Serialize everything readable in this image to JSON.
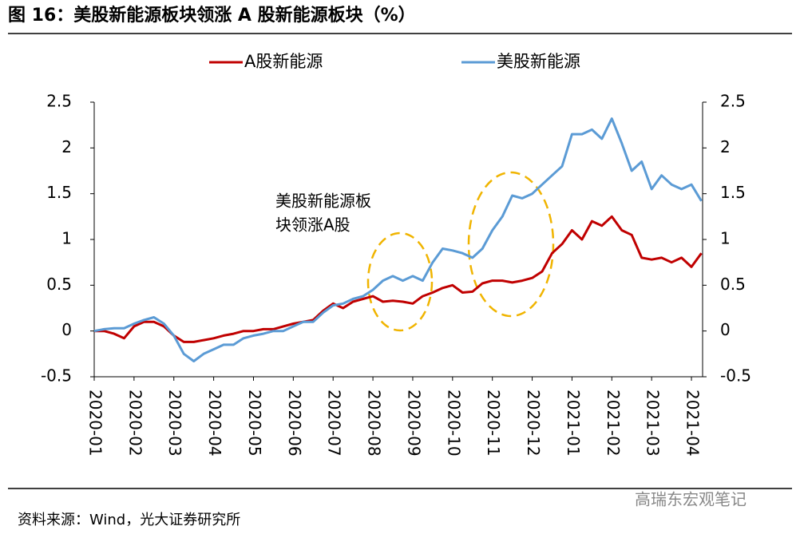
{
  "chart_data": {
    "type": "line",
    "title": "图 16：美股新能源板块领涨 A 股新能源板块（%）",
    "annotation": [
      "美股新能源板",
      "块领涨A股"
    ],
    "source": "资料来源：Wind，光大证券研究所",
    "watermark": "高瑞东宏观笔记",
    "x": [
      0,
      0.25,
      0.5,
      0.75,
      1,
      1.25,
      1.5,
      1.75,
      2,
      2.25,
      2.5,
      2.75,
      3,
      3.25,
      3.5,
      3.75,
      4,
      4.25,
      4.5,
      4.75,
      5,
      5.25,
      5.5,
      5.75,
      6,
      6.25,
      6.5,
      6.75,
      7,
      7.25,
      7.5,
      7.75,
      8,
      8.25,
      8.5,
      8.75,
      9,
      9.25,
      9.5,
      9.75,
      10,
      10.25,
      10.5,
      10.75,
      11,
      11.25,
      11.5,
      11.75,
      12,
      12.25,
      12.5,
      12.75,
      13,
      13.25,
      13.5,
      13.75,
      14,
      14.25,
      14.5,
      14.75,
      15,
      15.25
    ],
    "xlim": [
      0,
      15.28
    ],
    "xticks": [
      {
        "value": 0,
        "label": "2020-01"
      },
      {
        "value": 1,
        "label": "2020-02"
      },
      {
        "value": 2,
        "label": "2020-03"
      },
      {
        "value": 3,
        "label": "2020-04"
      },
      {
        "value": 4,
        "label": "2020-05"
      },
      {
        "value": 5,
        "label": "2020-06"
      },
      {
        "value": 6,
        "label": "2020-07"
      },
      {
        "value": 7,
        "label": "2020-08"
      },
      {
        "value": 8,
        "label": "2020-09"
      },
      {
        "value": 9,
        "label": "2020-10"
      },
      {
        "value": 10,
        "label": "2020-11"
      },
      {
        "value": 11,
        "label": "2020-12"
      },
      {
        "value": 12,
        "label": "2021-01"
      },
      {
        "value": 13,
        "label": "2021-02"
      },
      {
        "value": 14,
        "label": "2021-03"
      },
      {
        "value": 15,
        "label": "2021-04"
      }
    ],
    "ylim": [
      -0.5,
      2.5
    ],
    "yticks": [
      -0.5,
      0,
      0.5,
      1,
      1.5,
      2,
      2.5
    ],
    "y2lim": [
      -0.5,
      2.5
    ],
    "y2ticks": [
      -0.5,
      0,
      0.5,
      1,
      1.5,
      2,
      2.5
    ],
    "legend": "top",
    "series": [
      {
        "name": "A股新能源",
        "color": "#c00000",
        "values": [
          0,
          0,
          -0.03,
          -0.08,
          0.05,
          0.1,
          0.1,
          0.05,
          -0.05,
          -0.12,
          -0.12,
          -0.1,
          -0.08,
          -0.05,
          -0.03,
          0,
          0,
          0.02,
          0.02,
          0.05,
          0.08,
          0.1,
          0.12,
          0.22,
          0.3,
          0.25,
          0.32,
          0.35,
          0.38,
          0.32,
          0.33,
          0.32,
          0.3,
          0.38,
          0.42,
          0.47,
          0.5,
          0.42,
          0.43,
          0.52,
          0.55,
          0.55,
          0.53,
          0.55,
          0.58,
          0.65,
          0.85,
          0.95,
          1.1,
          1.0,
          1.2,
          1.15,
          1.25,
          1.1,
          1.05,
          0.8,
          0.78,
          0.8,
          0.75,
          0.8,
          0.7,
          0.85
        ]
      },
      {
        "name": "美股新能源",
        "color": "#5b9bd5",
        "values": [
          0,
          0.02,
          0.03,
          0.03,
          0.08,
          0.12,
          0.15,
          0.08,
          -0.05,
          -0.25,
          -0.33,
          -0.25,
          -0.2,
          -0.15,
          -0.15,
          -0.08,
          -0.05,
          -0.03,
          0,
          0,
          0.05,
          0.1,
          0.1,
          0.2,
          0.28,
          0.3,
          0.35,
          0.38,
          0.45,
          0.55,
          0.6,
          0.55,
          0.6,
          0.55,
          0.75,
          0.9,
          0.88,
          0.85,
          0.8,
          0.9,
          1.1,
          1.25,
          1.48,
          1.45,
          1.5,
          1.6,
          1.7,
          1.8,
          2.15,
          2.15,
          2.2,
          2.1,
          2.32,
          2.05,
          1.75,
          1.85,
          1.55,
          1.7,
          1.6,
          1.55,
          1.6,
          1.42
        ]
      }
    ]
  }
}
